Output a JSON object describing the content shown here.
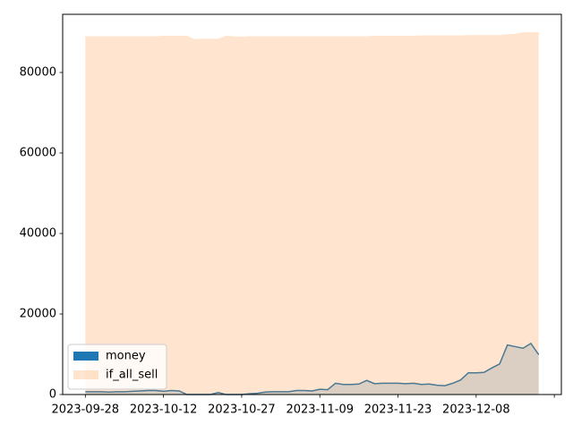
{
  "chart_data": {
    "type": "area",
    "categories": [
      "2023-09-28",
      null,
      null,
      null,
      null,
      null,
      null,
      null,
      null,
      null,
      "2023-10-12",
      null,
      null,
      null,
      null,
      null,
      null,
      null,
      null,
      null,
      "2023-10-27",
      null,
      null,
      null,
      null,
      null,
      null,
      null,
      null,
      null,
      "2023-11-09",
      null,
      null,
      null,
      null,
      null,
      null,
      null,
      null,
      null,
      "2023-11-23",
      null,
      null,
      null,
      null,
      null,
      null,
      null,
      null,
      null,
      "2023-12-08",
      null,
      null,
      null,
      null,
      null,
      null,
      null,
      null
    ],
    "series": [
      {
        "name": "money",
        "color": "#1f77b4",
        "line": true,
        "values": [
          700,
          700,
          700,
          600,
          700,
          700,
          800,
          900,
          1000,
          1000,
          800,
          1000,
          900,
          0,
          0,
          0,
          0,
          500,
          0,
          0,
          0,
          200,
          300,
          600,
          700,
          700,
          700,
          1000,
          1000,
          900,
          1300,
          1200,
          2800,
          2500,
          2500,
          2600,
          3500,
          2700,
          2800,
          2800,
          2800,
          2700,
          2800,
          2500,
          2600,
          2300,
          2200,
          2800,
          3600,
          5400,
          5400,
          5500,
          6600,
          7600,
          12300,
          11900,
          11500,
          12700,
          9900
        ]
      },
      {
        "name": "if_all_sell",
        "color": "#ff7f0e",
        "line": false,
        "values": [
          89000,
          89000,
          89000,
          89000,
          89000,
          89000,
          89000,
          89000,
          89000,
          89000,
          89100,
          89100,
          89100,
          89100,
          88300,
          88400,
          88400,
          88400,
          89100,
          89000,
          88900,
          89000,
          89000,
          89000,
          89000,
          89000,
          89000,
          89000,
          89000,
          89000,
          89000,
          89000,
          89000,
          89000,
          89000,
          89000,
          89000,
          89100,
          89100,
          89100,
          89100,
          89100,
          89100,
          89200,
          89200,
          89200,
          89200,
          89200,
          89200,
          89300,
          89300,
          89300,
          89300,
          89300,
          89500,
          89600,
          90000,
          90000,
          90000
        ]
      }
    ],
    "xlim": [
      -2.9,
      60.9
    ],
    "xticks": [
      0,
      10,
      20,
      30,
      40,
      50,
      60
    ],
    "ylim": [
      0,
      94444
    ],
    "yticks": [
      0,
      20000,
      40000,
      60000,
      80000
    ],
    "legend": "lower left"
  }
}
